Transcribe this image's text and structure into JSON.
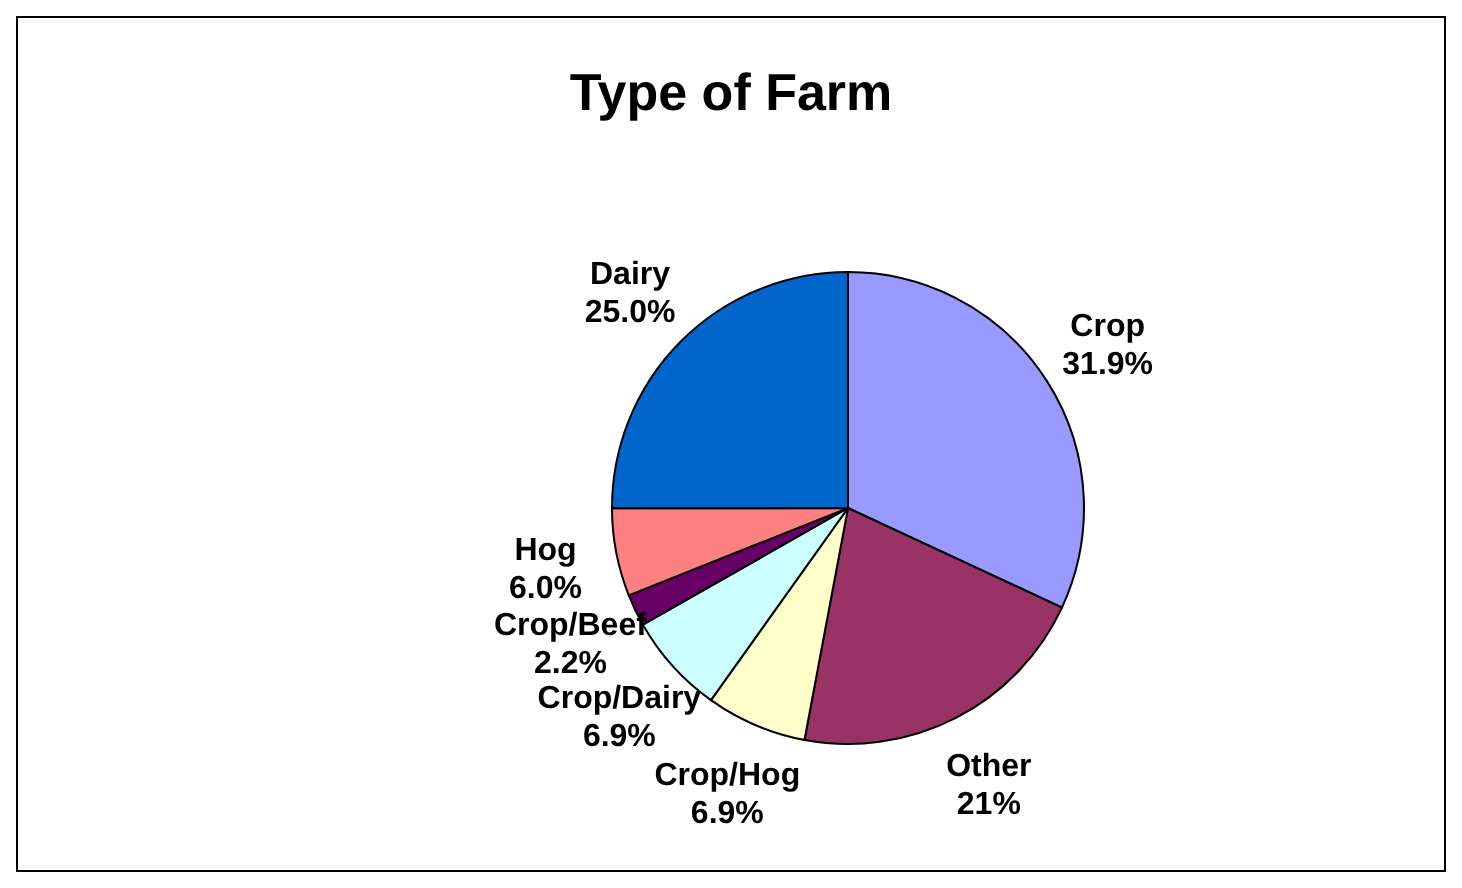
{
  "chart_data": {
    "type": "pie",
    "title": "Type of Farm",
    "categories": [
      "Crop",
      "Other",
      "Crop/Hog",
      "Crop/Dairy",
      "Crop/Beef",
      "Hog",
      "Dairy"
    ],
    "values": [
      31.9,
      21,
      6.9,
      6.9,
      2.2,
      6.0,
      25.0
    ],
    "value_labels": [
      "31.9%",
      "21%",
      "6.9%",
      "6.9%",
      "2.2%",
      "6.0%",
      "25.0%"
    ],
    "colors": [
      "#9999ff",
      "#993366",
      "#ffffcc",
      "#ccffff",
      "#660066",
      "#ff8080",
      "#0066cc"
    ],
    "legend": false
  }
}
